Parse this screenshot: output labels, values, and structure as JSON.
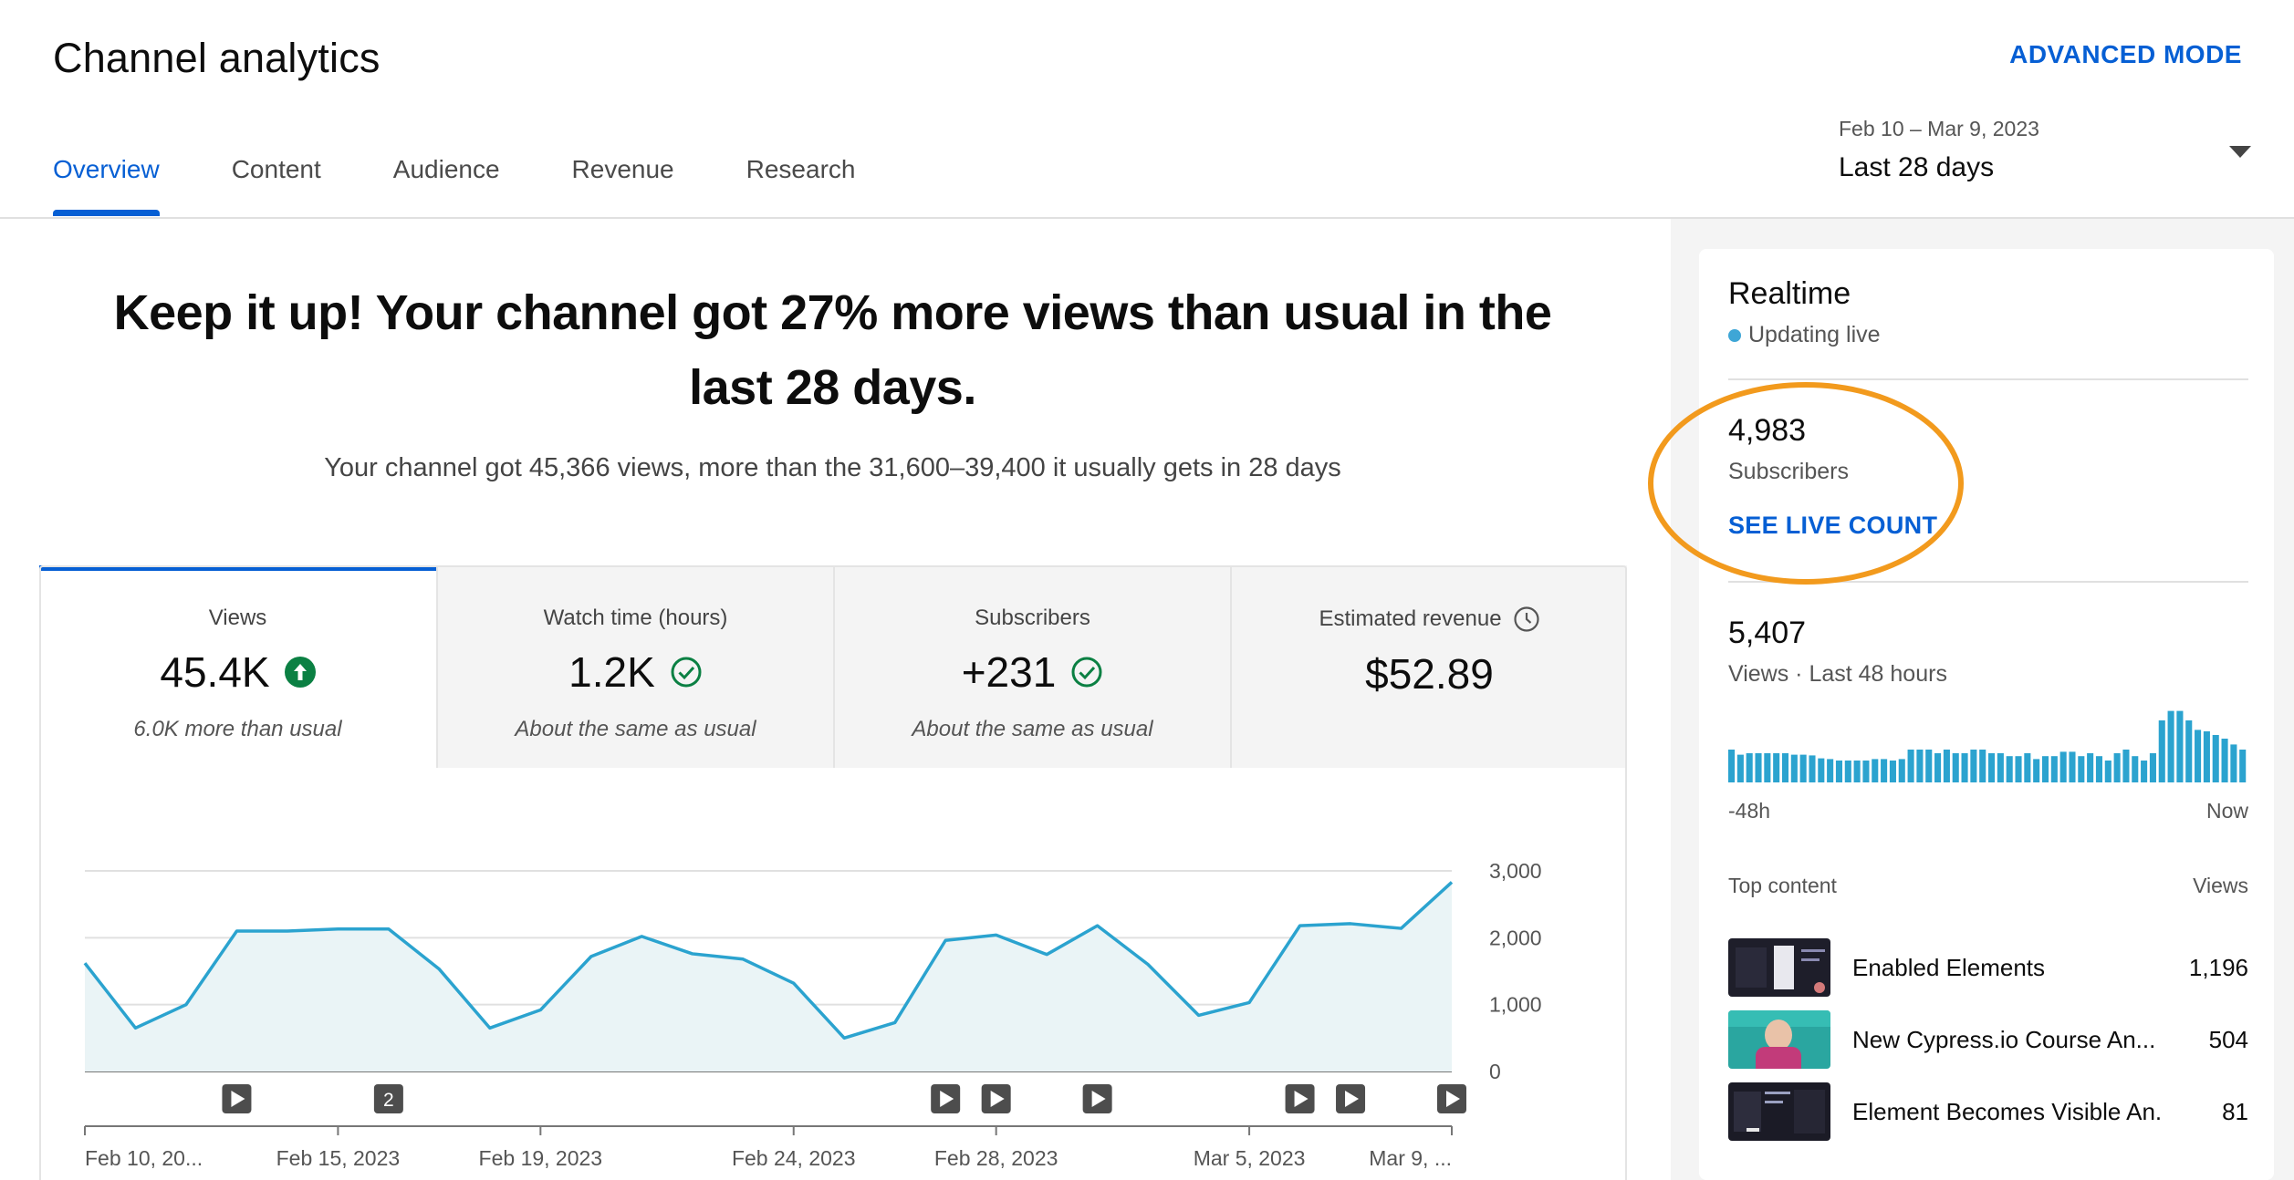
{
  "header": {
    "title": "Channel analytics",
    "advanced_mode": "ADVANCED MODE",
    "tabs": [
      {
        "label": "Overview",
        "active": true
      },
      {
        "label": "Content",
        "active": false
      },
      {
        "label": "Audience",
        "active": false
      },
      {
        "label": "Revenue",
        "active": false
      },
      {
        "label": "Research",
        "active": false
      }
    ],
    "date_range": "Feb 10 – Mar 9, 2023",
    "date_preset": "Last 28 days"
  },
  "main": {
    "headline_1": "Keep it up! Your channel got 27% more views than usual in the",
    "headline_2": "last 28 days.",
    "subline": "Your channel got 45,366 views, more than the 31,600–39,400 it usually gets in 28 days",
    "cards": [
      {
        "label": "Views",
        "value": "45.4K",
        "note": "6.0K more than usual",
        "icon": "arrow-up-circle-icon"
      },
      {
        "label": "Watch time (hours)",
        "value": "1.2K",
        "note": "About the same as usual",
        "icon": "check-circle-icon"
      },
      {
        "label": "Subscribers",
        "value": "+231",
        "note": "About the same as usual",
        "icon": "check-circle-icon"
      },
      {
        "label": "Estimated revenue",
        "value": "$52.89",
        "note": "",
        "icon": "clock-icon"
      }
    ]
  },
  "chart_data": {
    "type": "area",
    "y_ticks": [
      "3,000",
      "2,000",
      "1,000",
      "0"
    ],
    "ylim": [
      0,
      3000
    ],
    "x_tick_labels": [
      "Feb 10, 20...",
      "Feb 15, 2023",
      "Feb 19, 2023",
      "Feb 24, 2023",
      "Feb 28, 2023",
      "Mar 5, 2023",
      "Mar 9, ..."
    ],
    "x_tick_days": [
      0,
      5,
      9,
      14,
      18,
      23,
      27
    ],
    "series": [
      {
        "values": [
          1620,
          650,
          1000,
          2100,
          2100,
          2130,
          2130,
          1530,
          650,
          920,
          1720,
          2020,
          1760,
          1680,
          1320,
          500,
          730,
          1960,
          2040,
          1750,
          2180,
          1600,
          840,
          1030,
          2180,
          2210,
          2140,
          2830
        ]
      }
    ],
    "markers": [
      {
        "day": 3,
        "label": "play"
      },
      {
        "day": 6,
        "label": "2"
      },
      {
        "day": 17,
        "label": "play"
      },
      {
        "day": 18,
        "label": "play"
      },
      {
        "day": 20,
        "label": "play"
      },
      {
        "day": 24,
        "label": "play"
      },
      {
        "day": 25,
        "label": "play"
      },
      {
        "day": 27,
        "label": "play"
      }
    ],
    "colors": {
      "line": "#2ba3cf",
      "fill": "#eaf4f6",
      "grid": "#e0e0e0"
    }
  },
  "realtime": {
    "title": "Realtime",
    "status": "Updating live",
    "subscribers_value": "4,983",
    "subscribers_label": "Subscribers",
    "see_live": "SEE LIVE COUNT",
    "views_value": "5,407",
    "views_label": "Views · Last 48 hours",
    "axis_start": "-48h",
    "axis_end": "Now",
    "bars": [
      0.45,
      0.38,
      0.4,
      0.4,
      0.4,
      0.4,
      0.4,
      0.38,
      0.38,
      0.37,
      0.33,
      0.32,
      0.3,
      0.3,
      0.3,
      0.3,
      0.32,
      0.32,
      0.3,
      0.32,
      0.45,
      0.45,
      0.45,
      0.4,
      0.45,
      0.4,
      0.4,
      0.45,
      0.45,
      0.4,
      0.4,
      0.36,
      0.36,
      0.4,
      0.32,
      0.36,
      0.36,
      0.42,
      0.42,
      0.36,
      0.4,
      0.36,
      0.3,
      0.4,
      0.45,
      0.36,
      0.3,
      0.4,
      0.85,
      0.98,
      0.98,
      0.85,
      0.72,
      0.7,
      0.65,
      0.6,
      0.52,
      0.45
    ],
    "bar_color": "#2ba3cf",
    "top_content_label": "Top content",
    "views_col_label": "Views",
    "top_content": [
      {
        "title": "Enabled Elements",
        "views": "1,196"
      },
      {
        "title": "New Cypress.io Course An...",
        "views": "504"
      },
      {
        "title": "Element Becomes Visible An...",
        "views": "81"
      }
    ]
  }
}
